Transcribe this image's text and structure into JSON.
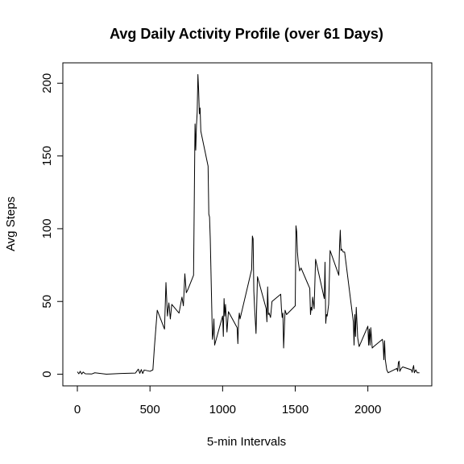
{
  "chart_data": {
    "type": "line",
    "title": "Avg Daily Activity Profile (over 61 Days)",
    "xlabel": "5-min Intervals",
    "ylabel": "Avg Steps",
    "xlim": [
      -100,
      2440
    ],
    "ylim": [
      -8,
      214
    ],
    "x_ticks": [
      0,
      500,
      1000,
      1500,
      2000
    ],
    "y_ticks": [
      0,
      50,
      100,
      150,
      200
    ],
    "grid": false,
    "legend": "none",
    "line_color": "#000000",
    "x": [
      0,
      10,
      20,
      30,
      40,
      55,
      100,
      120,
      200,
      300,
      400,
      420,
      430,
      440,
      450,
      460,
      500,
      520,
      530,
      540,
      550,
      600,
      610,
      620,
      630,
      640,
      650,
      700,
      720,
      730,
      740,
      750,
      760,
      800,
      810,
      815,
      820,
      825,
      830,
      835,
      840,
      845,
      850,
      900,
      905,
      910,
      915,
      930,
      935,
      940,
      945,
      1000,
      1005,
      1010,
      1015,
      1020,
      1030,
      1040,
      1100,
      1105,
      1110,
      1115,
      1120,
      1200,
      1205,
      1210,
      1215,
      1220,
      1230,
      1240,
      1300,
      1305,
      1310,
      1315,
      1320,
      1330,
      1340,
      1400,
      1405,
      1410,
      1415,
      1420,
      1430,
      1440,
      1500,
      1505,
      1510,
      1515,
      1520,
      1530,
      1540,
      1600,
      1605,
      1610,
      1615,
      1620,
      1630,
      1640,
      1700,
      1705,
      1710,
      1715,
      1720,
      1730,
      1740,
      1800,
      1805,
      1810,
      1815,
      1820,
      1830,
      1840,
      1900,
      1905,
      1910,
      1915,
      1920,
      1930,
      1940,
      2000,
      2005,
      2010,
      2015,
      2020,
      2030,
      2040,
      2100,
      2105,
      2110,
      2115,
      2120,
      2130,
      2140,
      2200,
      2205,
      2210,
      2215,
      2220,
      2230,
      2240,
      2300,
      2305,
      2310,
      2315,
      2320,
      2330,
      2340,
      2355
    ],
    "y": [
      1.7,
      0.3,
      2.0,
      0.1,
      1.5,
      0.3,
      0.2,
      1.0,
      0.0,
      0.5,
      0.8,
      3.5,
      0.6,
      3.2,
      0.5,
      2.9,
      2.0,
      3.0,
      18.0,
      31.0,
      44.0,
      31.0,
      63.0,
      40.0,
      49.0,
      38.0,
      48.0,
      42.0,
      53.0,
      47.0,
      69.0,
      56.0,
      58.0,
      68.0,
      172.0,
      154.0,
      171.0,
      180.0,
      206.0,
      195.0,
      179.0,
      183.0,
      167.0,
      143.0,
      110.0,
      108.0,
      93.0,
      24.0,
      28.0,
      38.0,
      20.0,
      40.0,
      26.0,
      52.0,
      40.0,
      48.0,
      29.0,
      43.0,
      32.0,
      21.0,
      37.0,
      42.0,
      38.0,
      72.0,
      95.0,
      93.0,
      57.0,
      46.0,
      28.0,
      67.0,
      45.0,
      36.0,
      60.0,
      41.0,
      42.0,
      39.0,
      50.0,
      55.0,
      45.0,
      39.0,
      42.0,
      18.0,
      44.0,
      41.0,
      47.0,
      102.0,
      98.0,
      84.0,
      78.0,
      71.0,
      73.0,
      59.0,
      41.0,
      46.0,
      44.0,
      53.0,
      45.0,
      79.0,
      52.0,
      77.0,
      35.0,
      41.0,
      40.0,
      48.0,
      85.0,
      68.0,
      88.0,
      99.0,
      85.0,
      86.0,
      84.0,
      84.0,
      36.0,
      20.0,
      41.0,
      26.0,
      46.0,
      25.0,
      19.0,
      33.0,
      20.0,
      31.0,
      20.0,
      32.0,
      18.0,
      19.0,
      24.0,
      21.0,
      10.0,
      23.0,
      10.0,
      3.0,
      1.0,
      4.0,
      2.0,
      8.0,
      9.0,
      2.0,
      4.0,
      5.0,
      3.0,
      1.3,
      4.0,
      6.0,
      1.0,
      3.0,
      1.0,
      1.0
    ]
  }
}
